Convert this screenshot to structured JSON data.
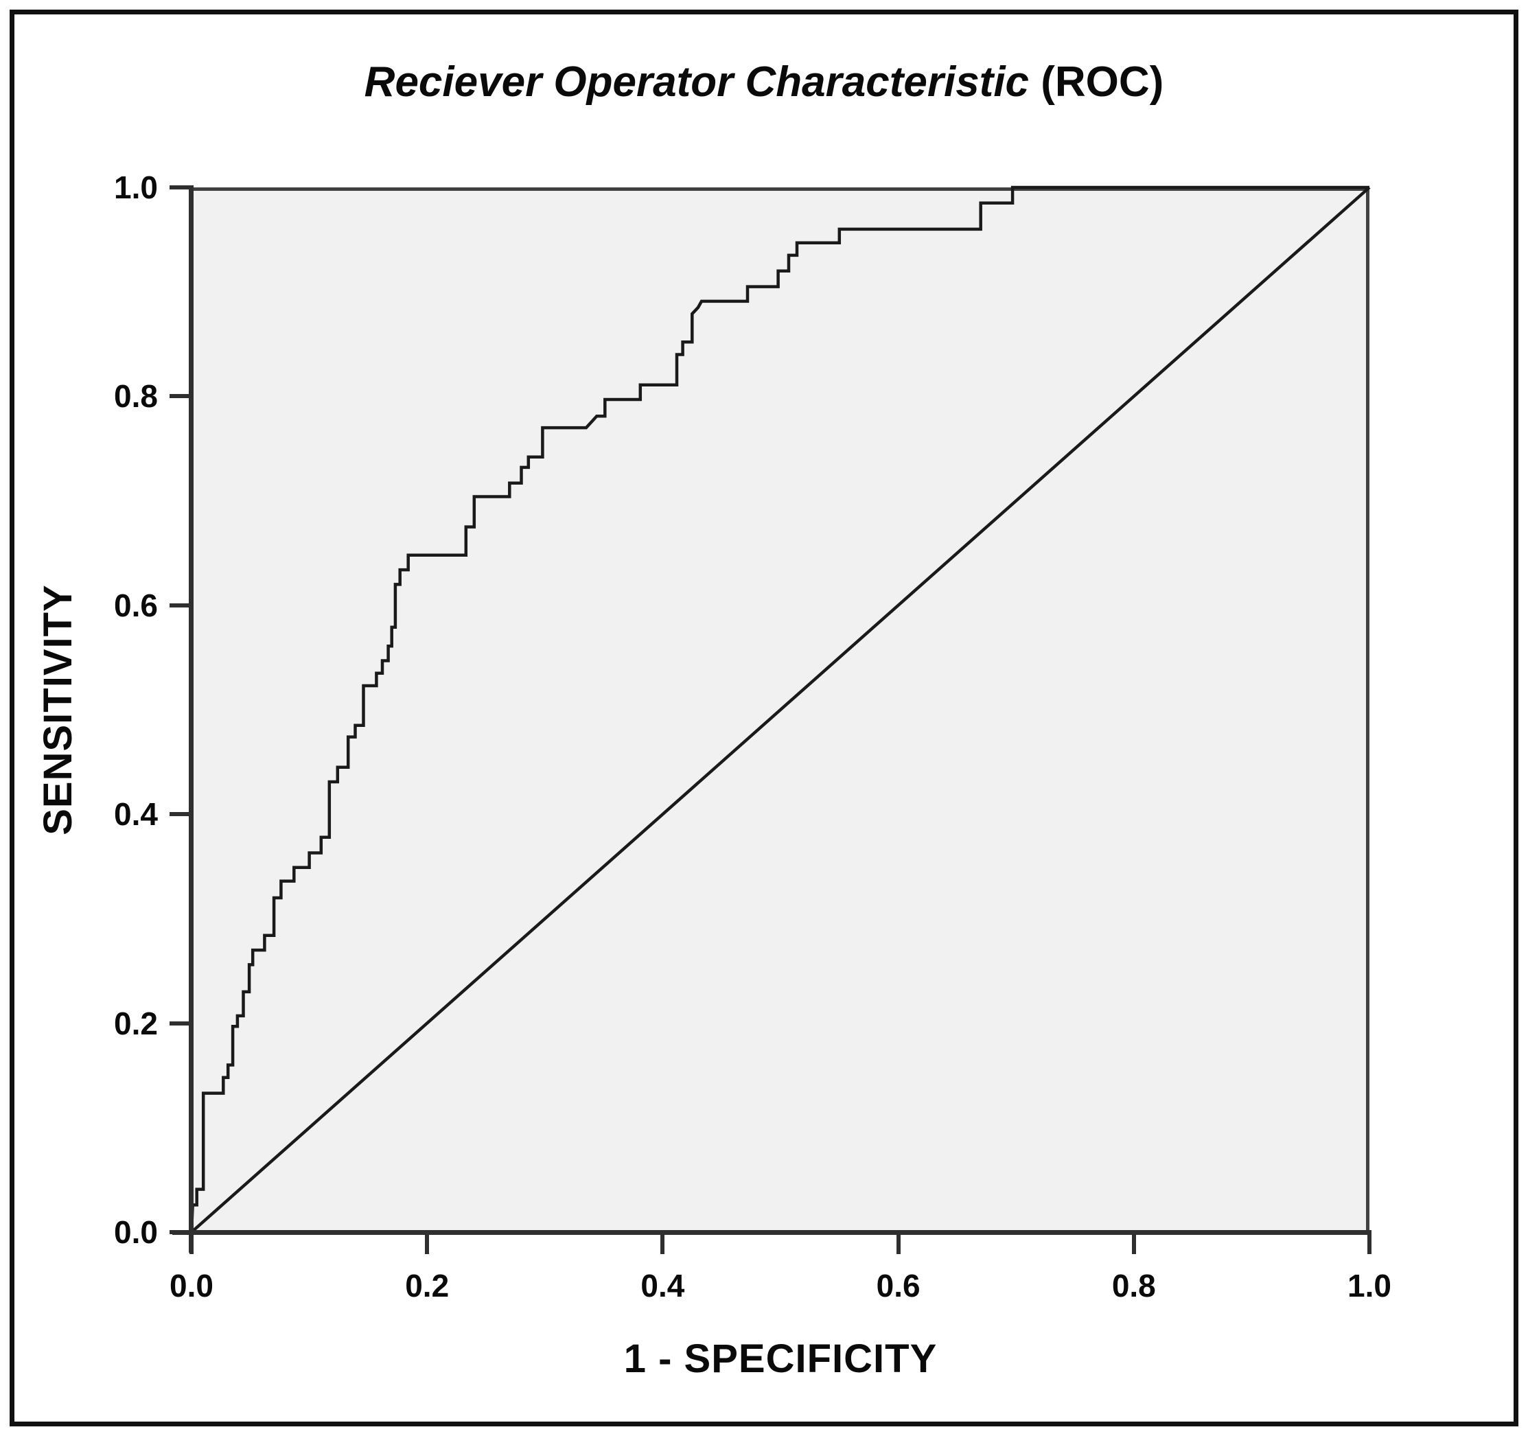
{
  "chart_data": {
    "type": "line",
    "title": "Reciever Operator Characteristic (ROC)",
    "title_italic": "Reciever Operator Characteristic",
    "title_suffix": " (ROC)",
    "xlabel": "1 - SPECIFICITY",
    "ylabel": "SENSITIVITY",
    "xlim": [
      0.0,
      1.0
    ],
    "ylim": [
      0.0,
      1.0
    ],
    "x_ticks": [
      "0.0",
      "0.2",
      "0.4",
      "0.6",
      "0.8",
      "1.0"
    ],
    "y_ticks": [
      "1.0",
      "0.8",
      "0.6",
      "0.4",
      "0.2",
      "0.0"
    ],
    "grid": false,
    "legend_position": "none",
    "colors": {
      "plot_background": "#f0f1f0",
      "curve": "#1a1a1a",
      "reference_line": "#1a1a1a",
      "axis": "#2f2f2f",
      "text": "#0a0a0a"
    },
    "series": [
      {
        "name": "ROC curve",
        "style": "step",
        "points": [
          [
            0.0,
            0.0
          ],
          [
            0.001,
            0.026
          ],
          [
            0.0045,
            0.026
          ],
          [
            0.0045,
            0.041
          ],
          [
            0.01,
            0.041
          ],
          [
            0.01,
            0.133
          ],
          [
            0.027,
            0.133
          ],
          [
            0.027,
            0.148
          ],
          [
            0.031,
            0.148
          ],
          [
            0.031,
            0.16
          ],
          [
            0.035,
            0.16
          ],
          [
            0.035,
            0.197
          ],
          [
            0.039,
            0.197
          ],
          [
            0.039,
            0.207
          ],
          [
            0.044,
            0.207
          ],
          [
            0.044,
            0.23
          ],
          [
            0.049,
            0.23
          ],
          [
            0.049,
            0.256
          ],
          [
            0.052,
            0.256
          ],
          [
            0.052,
            0.27
          ],
          [
            0.062,
            0.27
          ],
          [
            0.062,
            0.284
          ],
          [
            0.07,
            0.284
          ],
          [
            0.07,
            0.32
          ],
          [
            0.076,
            0.32
          ],
          [
            0.076,
            0.336
          ],
          [
            0.087,
            0.336
          ],
          [
            0.087,
            0.349
          ],
          [
            0.1,
            0.349
          ],
          [
            0.1,
            0.363
          ],
          [
            0.11,
            0.363
          ],
          [
            0.11,
            0.378
          ],
          [
            0.117,
            0.378
          ],
          [
            0.117,
            0.431
          ],
          [
            0.124,
            0.431
          ],
          [
            0.124,
            0.445
          ],
          [
            0.133,
            0.445
          ],
          [
            0.133,
            0.474
          ],
          [
            0.139,
            0.474
          ],
          [
            0.139,
            0.485
          ],
          [
            0.146,
            0.485
          ],
          [
            0.146,
            0.523
          ],
          [
            0.157,
            0.523
          ],
          [
            0.157,
            0.535
          ],
          [
            0.162,
            0.535
          ],
          [
            0.162,
            0.547
          ],
          [
            0.167,
            0.547
          ],
          [
            0.167,
            0.561
          ],
          [
            0.17,
            0.561
          ],
          [
            0.17,
            0.579
          ],
          [
            0.173,
            0.579
          ],
          [
            0.173,
            0.62
          ],
          [
            0.177,
            0.62
          ],
          [
            0.177,
            0.634
          ],
          [
            0.184,
            0.634
          ],
          [
            0.184,
            0.648
          ],
          [
            0.233,
            0.648
          ],
          [
            0.233,
            0.675
          ],
          [
            0.24,
            0.675
          ],
          [
            0.24,
            0.704
          ],
          [
            0.27,
            0.704
          ],
          [
            0.27,
            0.717
          ],
          [
            0.28,
            0.717
          ],
          [
            0.28,
            0.732
          ],
          [
            0.286,
            0.732
          ],
          [
            0.286,
            0.742
          ],
          [
            0.298,
            0.742
          ],
          [
            0.298,
            0.77
          ],
          [
            0.335,
            0.77
          ],
          [
            0.34,
            0.776
          ],
          [
            0.344,
            0.781
          ],
          [
            0.351,
            0.781
          ],
          [
            0.351,
            0.797
          ],
          [
            0.381,
            0.797
          ],
          [
            0.381,
            0.811
          ],
          [
            0.412,
            0.811
          ],
          [
            0.412,
            0.84
          ],
          [
            0.417,
            0.84
          ],
          [
            0.417,
            0.852
          ],
          [
            0.425,
            0.852
          ],
          [
            0.425,
            0.879
          ],
          [
            0.43,
            0.885
          ],
          [
            0.433,
            0.891
          ],
          [
            0.472,
            0.891
          ],
          [
            0.472,
            0.905
          ],
          [
            0.498,
            0.905
          ],
          [
            0.498,
            0.92
          ],
          [
            0.507,
            0.92
          ],
          [
            0.507,
            0.935
          ],
          [
            0.514,
            0.935
          ],
          [
            0.514,
            0.947
          ],
          [
            0.55,
            0.947
          ],
          [
            0.55,
            0.96
          ],
          [
            0.67,
            0.96
          ],
          [
            0.67,
            0.985
          ],
          [
            0.697,
            0.985
          ],
          [
            0.697,
            1.0
          ],
          [
            1.0,
            1.0
          ]
        ]
      },
      {
        "name": "reference diagonal",
        "style": "line",
        "points": [
          [
            0.0,
            0.0
          ],
          [
            1.0,
            1.0
          ]
        ]
      }
    ]
  }
}
